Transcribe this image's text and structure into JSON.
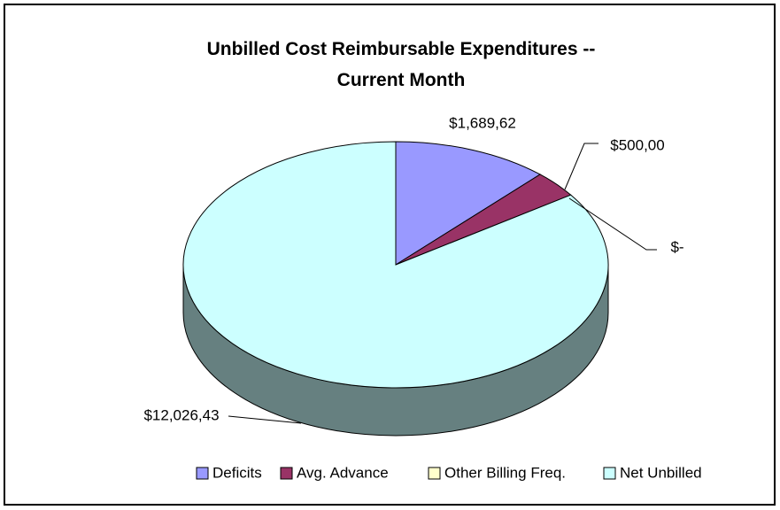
{
  "chart_data": {
    "type": "pie3d",
    "title": "Unbilled Cost Reimbursable Expenditures -- Current Month",
    "categories": [
      "Deficits",
      "Avg. Advance",
      "Other Billing Freq.",
      "Net Unbilled"
    ],
    "values": [
      1689.62,
      500.0,
      0,
      12026.43
    ],
    "value_labels": [
      "$1,689,62",
      "$500,00",
      "$-",
      "$12,026,43"
    ],
    "colors": [
      "#9999ff",
      "#993366",
      "#ffffcc",
      "#ccffff"
    ],
    "legend": "bottom"
  }
}
